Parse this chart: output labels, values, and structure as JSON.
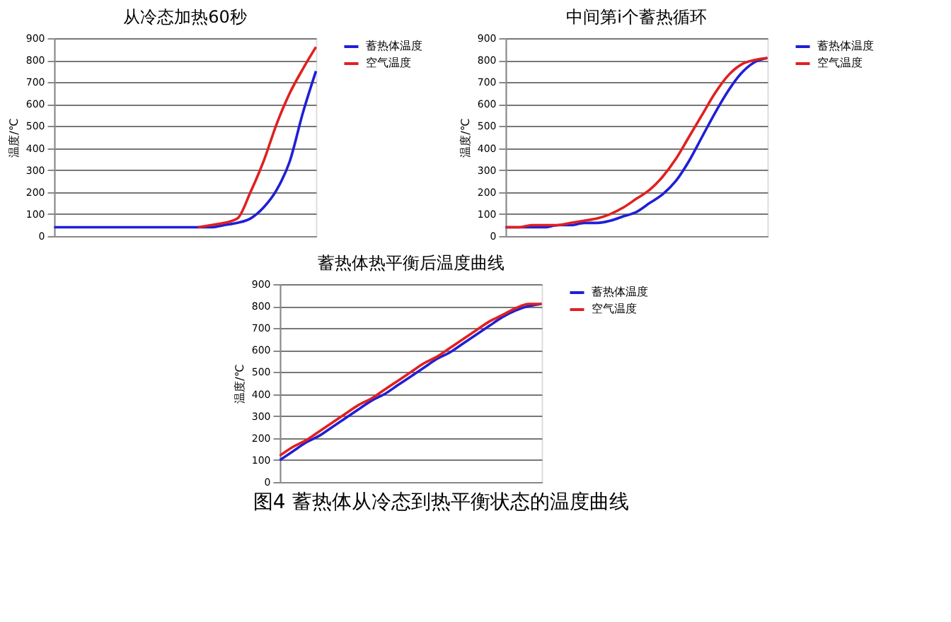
{
  "chart_data": [
    {
      "type": "line",
      "title": "从冷态加热60秒",
      "ylabel": "温度/℃",
      "categories": [
        null,
        null,
        null,
        null,
        null,
        null,
        null,
        null,
        null,
        null,
        null,
        null,
        null,
        null,
        null,
        null,
        null,
        null,
        null,
        null,
        null
      ],
      "ylim": [
        0,
        900
      ],
      "yticks": [
        0,
        100,
        200,
        300,
        400,
        500,
        600,
        700,
        800,
        900
      ],
      "grid": "y",
      "legend": "right",
      "tick_labels": "y",
      "series": [
        {
          "name": "蓄热体温度",
          "color": "#1f1fd6",
          "values": [
            40,
            40,
            40,
            40,
            40,
            40,
            40,
            40,
            40,
            40,
            40,
            40,
            40,
            50,
            60,
            80,
            130,
            210,
            340,
            560,
            750
          ]
        },
        {
          "name": "空气温度",
          "color": "#e02020",
          "values": [
            null,
            null,
            null,
            null,
            null,
            null,
            null,
            null,
            null,
            null,
            null,
            40,
            50,
            60,
            80,
            200,
            340,
            510,
            650,
            760,
            860
          ]
        }
      ]
    },
    {
      "type": "line",
      "title": "中间第i个蓄热循环",
      "ylabel": "温度/℃",
      "categories": [
        null,
        null,
        null,
        null,
        null,
        null,
        null,
        null,
        null,
        null,
        null,
        null,
        null,
        null,
        null,
        null,
        null,
        null,
        null,
        null,
        null
      ],
      "ylim": [
        0,
        900
      ],
      "yticks": [
        0,
        100,
        200,
        300,
        400,
        500,
        600,
        700,
        800,
        900
      ],
      "grid": "y",
      "legend": "right",
      "tick_labels": "y",
      "series": [
        {
          "name": "蓄热体温度",
          "color": "#1f1fd6",
          "values": [
            40,
            40,
            40,
            40,
            50,
            50,
            60,
            60,
            70,
            90,
            110,
            150,
            190,
            250,
            340,
            450,
            560,
            660,
            740,
            790,
            810
          ]
        },
        {
          "name": "空气温度",
          "color": "#e02020",
          "values": [
            40,
            40,
            50,
            50,
            50,
            60,
            70,
            80,
            100,
            130,
            170,
            210,
            270,
            350,
            450,
            550,
            650,
            730,
            780,
            800,
            810
          ]
        }
      ]
    },
    {
      "type": "line",
      "title": "蓄热体热平衡后温度曲线",
      "ylabel": "温度/℃",
      "categories": [
        null,
        null,
        null,
        null,
        null,
        null,
        null,
        null,
        null,
        null,
        null,
        null,
        null,
        null,
        null,
        null,
        null,
        null,
        null,
        null,
        null
      ],
      "ylim": [
        0,
        900
      ],
      "yticks": [
        0,
        100,
        200,
        300,
        400,
        500,
        600,
        700,
        800,
        900
      ],
      "grid": "y",
      "legend": "right",
      "tick_labels": "y",
      "annotations": [
        "图4  蓄热体从冷态到热平衡状态的温度曲线"
      ],
      "series": [
        {
          "name": "蓄热体温度",
          "color": "#1f1fd6",
          "values": [
            100,
            140,
            180,
            210,
            250,
            290,
            330,
            370,
            400,
            440,
            480,
            520,
            560,
            590,
            630,
            670,
            710,
            750,
            780,
            800,
            810
          ]
        },
        {
          "name": "空气温度",
          "color": "#e02020",
          "values": [
            120,
            160,
            190,
            230,
            270,
            310,
            350,
            380,
            420,
            460,
            500,
            540,
            570,
            610,
            650,
            690,
            730,
            760,
            790,
            810,
            810
          ]
        }
      ]
    }
  ]
}
